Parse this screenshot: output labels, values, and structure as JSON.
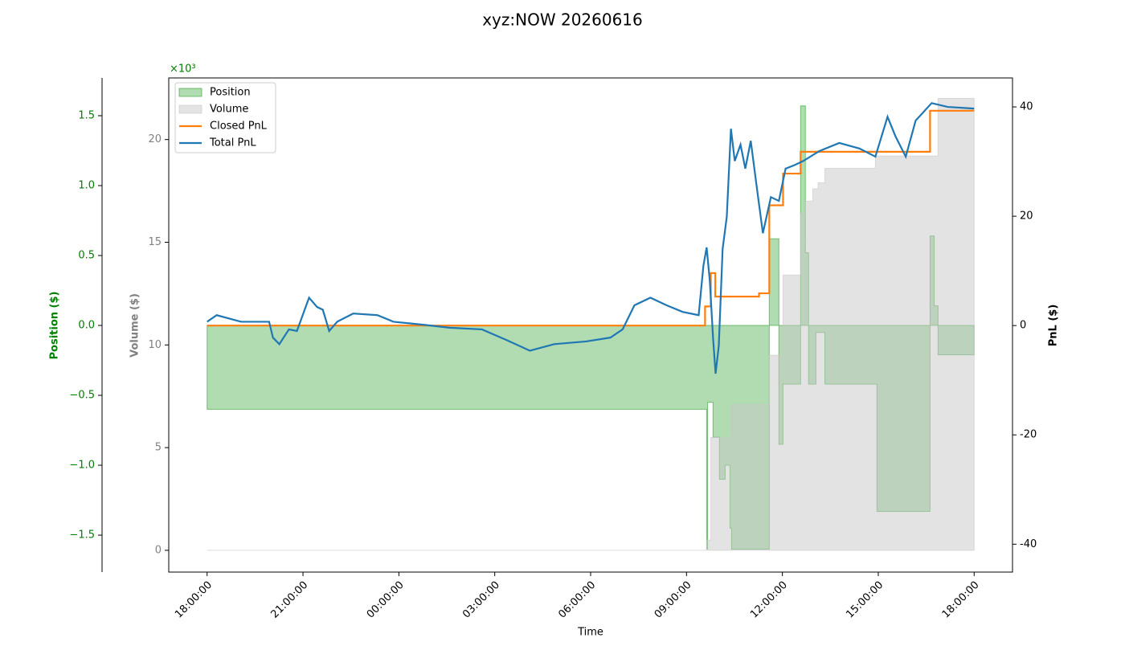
{
  "chart_data": {
    "type": "line",
    "title": "xyz:NOW 20260616",
    "x_label": "Time",
    "xlim": [
      -1.2,
      25.2
    ],
    "xticks": [
      {
        "value": 0,
        "label": "18:00:00"
      },
      {
        "value": 3,
        "label": "21:00:00"
      },
      {
        "value": 6,
        "label": "00:00:00"
      },
      {
        "value": 9,
        "label": "03:00:00"
      },
      {
        "value": 12,
        "label": "06:00:00"
      },
      {
        "value": 15,
        "label": "09:00:00"
      },
      {
        "value": 18,
        "label": "12:00:00"
      },
      {
        "value": 21,
        "label": "15:00:00"
      },
      {
        "value": 24,
        "label": "18:00:00"
      }
    ],
    "legend": "upper left",
    "axes": {
      "position": {
        "label": "Position ($)",
        "color": "#008000",
        "side": "outer-left",
        "multiplier": "×10³",
        "ylim": [
          -1.764,
          1.77
        ],
        "yticks": [
          {
            "value": -1.5,
            "label": "−1.5"
          },
          {
            "value": -1,
            "label": "−1.0"
          },
          {
            "value": -0.5,
            "label": "−0.5"
          },
          {
            "value": 0,
            "label": "0.0"
          },
          0.5,
          {
            "value": 1,
            "label": "1.0"
          },
          1.5
        ]
      },
      "volume": {
        "label": "Volume ($)",
        "color": "#808080",
        "side": "left",
        "ylim": [
          -1.06,
          23.0
        ],
        "yticks": [
          0,
          5,
          10,
          15,
          20
        ]
      },
      "pnl": {
        "label": "PnL ($)",
        "color": "#000000",
        "side": "right",
        "ylim": [
          -45.1,
          45.3
        ],
        "yticks": [
          -40,
          -20,
          0,
          20,
          40
        ]
      }
    },
    "series": [
      {
        "name": "Position",
        "type": "area",
        "axis": "position",
        "color": "#2ca02c",
        "x": [
          0,
          15.63,
          15.66,
          15.83,
          16.03,
          16.21,
          16.36,
          16.41,
          17.59,
          17.89,
          18.02,
          18.57,
          18.72,
          18.82,
          19.05,
          19.33,
          20.96,
          22.62,
          22.75,
          22.87,
          24.0
        ],
        "values": [
          -0.6,
          -1.6,
          -0.55,
          -0.8,
          -1.1,
          -1.0,
          -1.45,
          -1.6,
          0.62,
          -0.85,
          -0.42,
          1.57,
          0.52,
          -0.42,
          -0.05,
          -0.42,
          -1.33,
          0.64,
          0.14,
          -0.21,
          -0.21
        ]
      },
      {
        "name": "Volume",
        "type": "area",
        "axis": "volume",
        "color": "#c8c8c8",
        "x": [
          0,
          15.63,
          15.76,
          16.39,
          17.59,
          17.89,
          18.02,
          18.57,
          18.72,
          18.95,
          19.12,
          19.33,
          20.91,
          22.87,
          24.0
        ],
        "values": [
          0,
          0.5,
          5.5,
          7.1,
          9.5,
          9.5,
          13.4,
          16.4,
          17.0,
          17.6,
          17.9,
          18.6,
          19.2,
          22.0,
          22.0
        ]
      },
      {
        "name": "Closed PnL",
        "type": "step",
        "axis": "pnl",
        "color": "#ff7f0e",
        "x": [
          0,
          15.58,
          15.76,
          15.9,
          17.27,
          17.59,
          18.02,
          18.57,
          22.62,
          24.0
        ],
        "values": [
          0,
          3.5,
          9.6,
          5.3,
          5.9,
          22.0,
          27.8,
          31.8,
          39.3,
          39.3
        ]
      },
      {
        "name": "Total PnL",
        "type": "line",
        "axis": "pnl",
        "color": "#1f77b4",
        "x": [
          0,
          0.3,
          1.06,
          1.94,
          2.06,
          2.26,
          2.56,
          2.81,
          3.19,
          3.44,
          3.62,
          3.82,
          4.07,
          4.57,
          5.33,
          5.83,
          6.84,
          7.59,
          8.6,
          9.35,
          10.1,
          10.86,
          11.86,
          12.62,
          13.0,
          13.37,
          13.87,
          14.38,
          14.88,
          15.38,
          15.53,
          15.63,
          15.73,
          15.83,
          15.91,
          16.01,
          16.13,
          16.26,
          16.39,
          16.51,
          16.69,
          16.84,
          17.01,
          17.19,
          17.39,
          17.64,
          17.89,
          18.1,
          18.4,
          18.65,
          19.15,
          19.78,
          20.41,
          20.91,
          21.29,
          21.54,
          21.86,
          22.17,
          22.67,
          23.17,
          24.0
        ],
        "values": [
          0.7,
          1.9,
          0.7,
          0.7,
          -2.2,
          -3.4,
          -0.7,
          -1.0,
          5.1,
          3.4,
          2.9,
          -1.0,
          0.7,
          2.2,
          1.9,
          0.7,
          0.1,
          -0.4,
          -0.7,
          -2.6,
          -4.6,
          -3.4,
          -2.9,
          -2.2,
          -0.7,
          3.7,
          5.1,
          3.7,
          2.5,
          1.9,
          11.0,
          14.3,
          8.1,
          -2.2,
          -8.8,
          -3.7,
          14.0,
          19.9,
          36.0,
          30.1,
          33.1,
          28.7,
          33.8,
          25.7,
          16.9,
          23.5,
          22.8,
          28.7,
          29.4,
          30.1,
          31.9,
          33.4,
          32.4,
          30.9,
          38.2,
          34.6,
          30.9,
          37.5,
          40.7,
          40.0,
          39.7
        ]
      }
    ]
  }
}
